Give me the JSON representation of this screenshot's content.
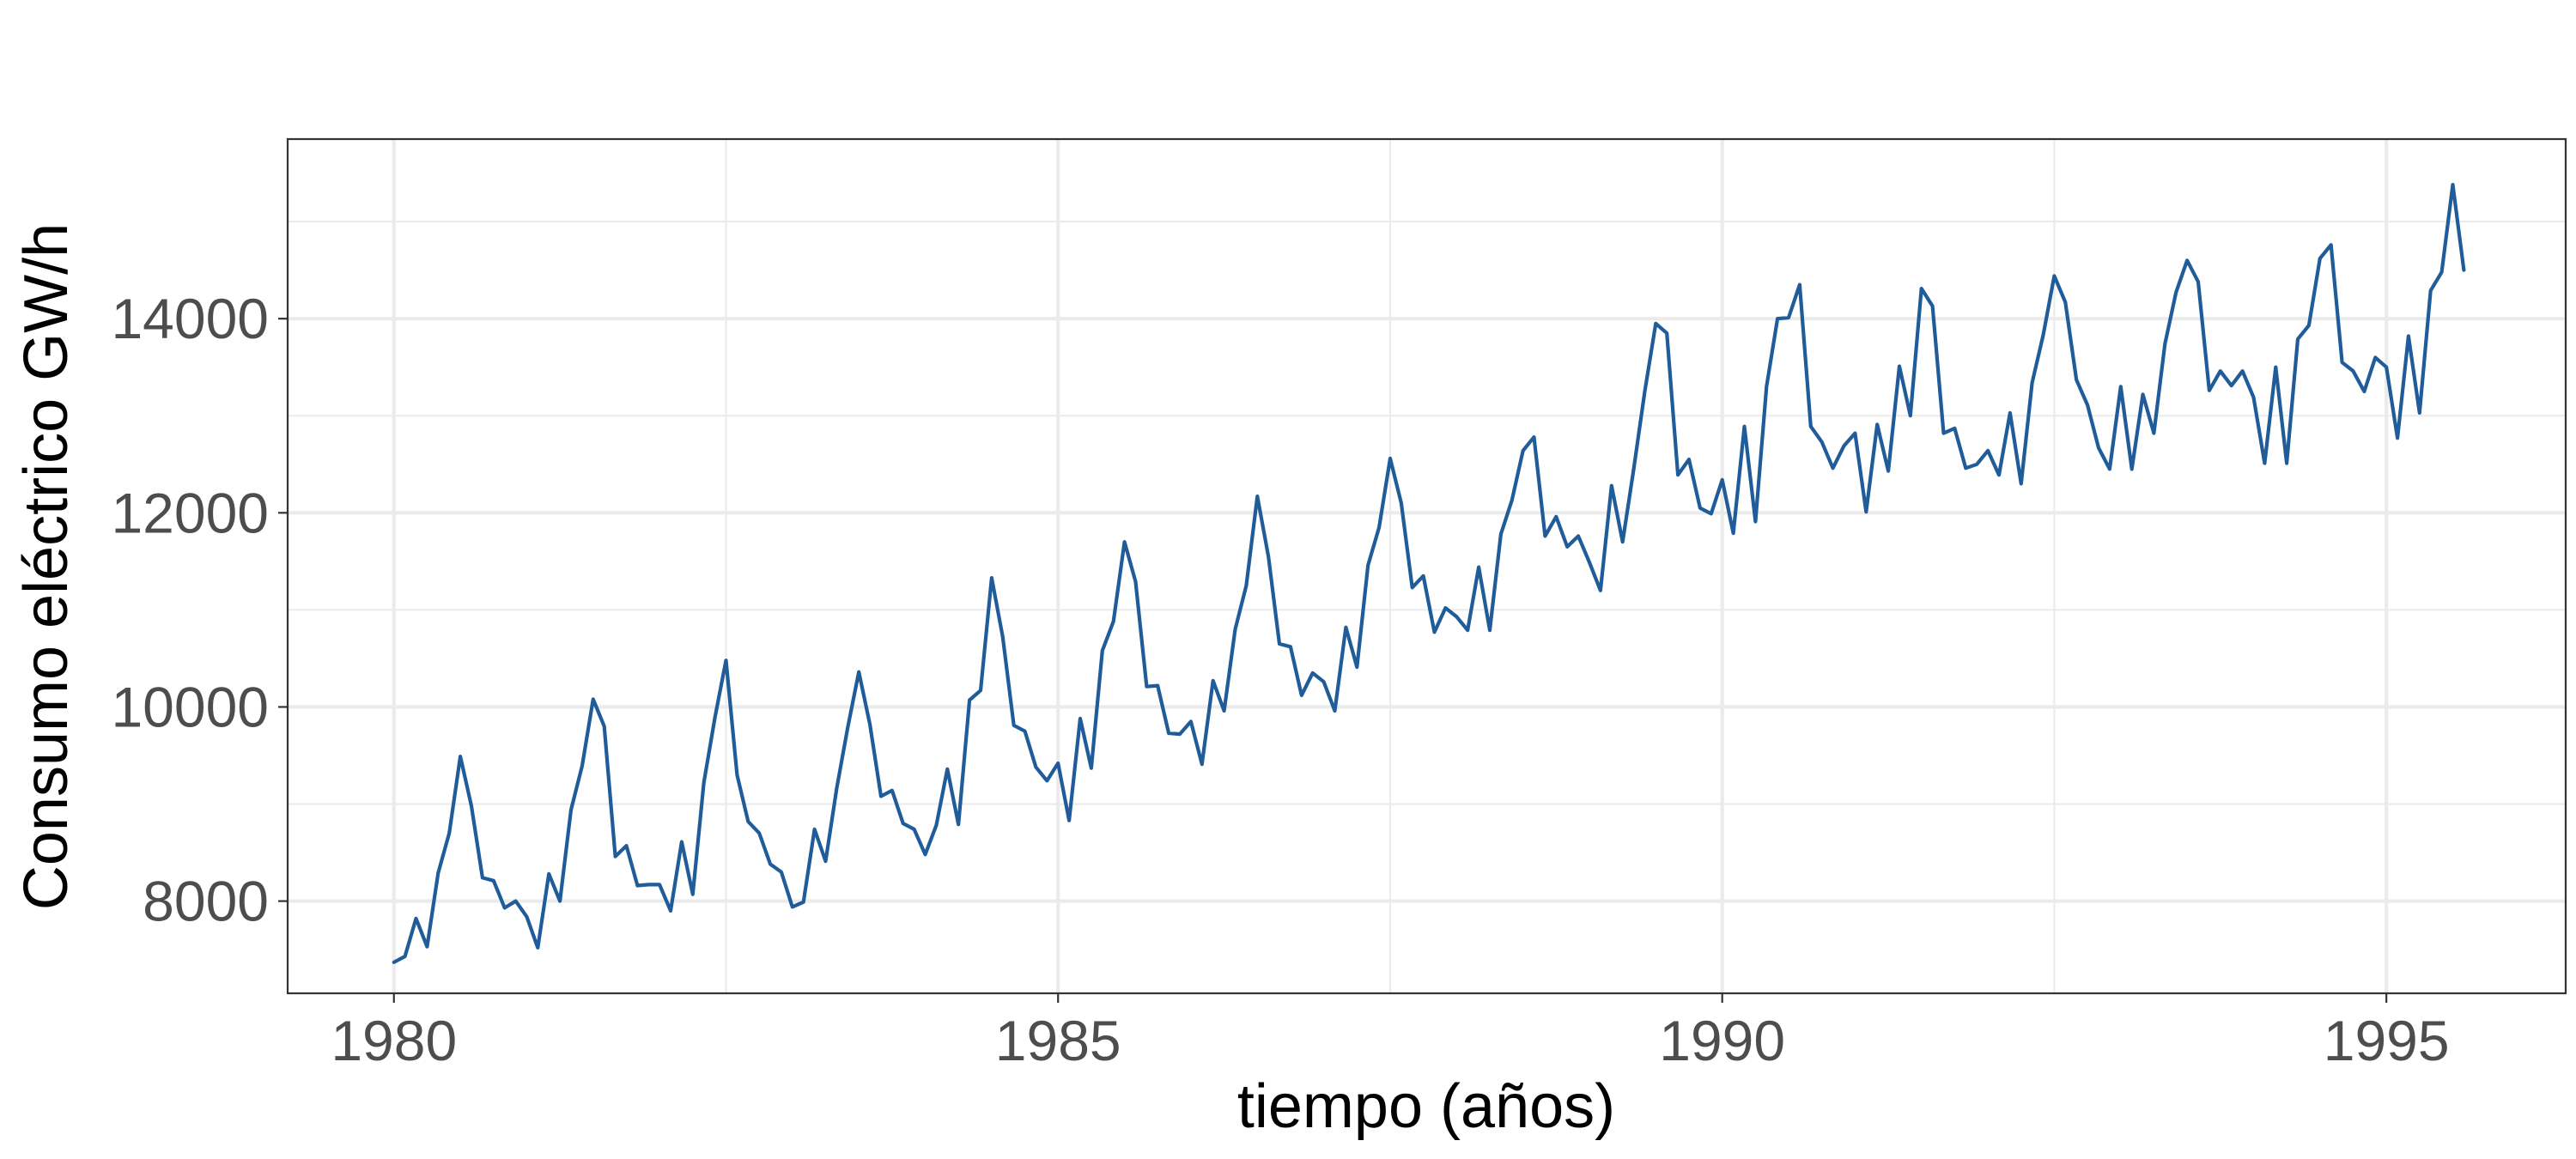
{
  "chart_data": {
    "type": "line",
    "title": "",
    "xlabel": "tiempo (años)",
    "ylabel": "Consumo eléctrico GW/h",
    "xlim": [
      1979.2,
      1996.35
    ],
    "ylim": [
      7050,
      15850
    ],
    "x_ticks": [
      1980,
      1985,
      1990,
      1995
    ],
    "x_tick_labels": [
      "1980",
      "1985",
      "1990",
      "1995"
    ],
    "x_minor_ticks": [
      1982.5,
      1987.5,
      1992.5
    ],
    "y_ticks": [
      8000,
      10000,
      12000,
      14000
    ],
    "y_tick_labels": [
      "8000",
      "10000",
      "12000",
      "14000"
    ],
    "y_minor_ticks": [
      7000,
      9000,
      11000,
      13000,
      15000
    ],
    "grid": true,
    "legend": "none",
    "line_color": "#1f5c99",
    "series": [
      {
        "x_start": 1980.0,
        "x_step": 0.08333333,
        "values": [
          7370,
          7430,
          7820,
          7530,
          8290,
          8700,
          9490,
          8980,
          8240,
          8210,
          7930,
          8000,
          7840,
          7520,
          8280,
          8000,
          8940,
          9390,
          10080,
          9800,
          8460,
          8570,
          8160,
          8170,
          8170,
          7900,
          8610,
          8070,
          9220,
          9890,
          10480,
          9300,
          8820,
          8700,
          8380,
          8300,
          7940,
          7990,
          8740,
          8410,
          9160,
          9790,
          10360,
          9820,
          9080,
          9140,
          8800,
          8740,
          8480,
          8780,
          9360,
          8790,
          10070,
          10170,
          11330,
          10720,
          9810,
          9750,
          9380,
          9240,
          9420,
          8830,
          9880,
          9370,
          10580,
          10880,
          11700,
          11290,
          10210,
          10220,
          9730,
          9720,
          9850,
          9410,
          10270,
          9960,
          10800,
          11250,
          12170,
          11550,
          10650,
          10620,
          10120,
          10350,
          10260,
          9960,
          10820,
          10410,
          11460,
          11850,
          12560,
          12100,
          11230,
          11350,
          10770,
          11020,
          10930,
          10790,
          11440,
          10790,
          11780,
          12130,
          12640,
          12780,
          11760,
          11960,
          11650,
          11760,
          11490,
          11200,
          12280,
          11700,
          12450,
          13250,
          13950,
          13850,
          12390,
          12550,
          12050,
          11990,
          12340,
          11790,
          12890,
          11910,
          13300,
          14000,
          14010,
          14350,
          12890,
          12730,
          12460,
          12690,
          12820,
          12010,
          12910,
          12430,
          13510,
          13000,
          14310,
          14130,
          12820,
          12870,
          12460,
          12500,
          12640,
          12390,
          13030,
          12300,
          13340,
          13830,
          14440,
          14170,
          13370,
          13110,
          12670,
          12450,
          13300,
          12450,
          13220,
          12820,
          13740,
          14270,
          14600,
          14380,
          13260,
          13460,
          13310,
          13460,
          13190,
          12510,
          13500,
          12510,
          13790,
          13930,
          14620,
          14760,
          13550,
          13460,
          13250,
          13600,
          13500,
          12770,
          13820,
          13030,
          14290,
          14480,
          15380,
          14500
        ]
      }
    ]
  }
}
